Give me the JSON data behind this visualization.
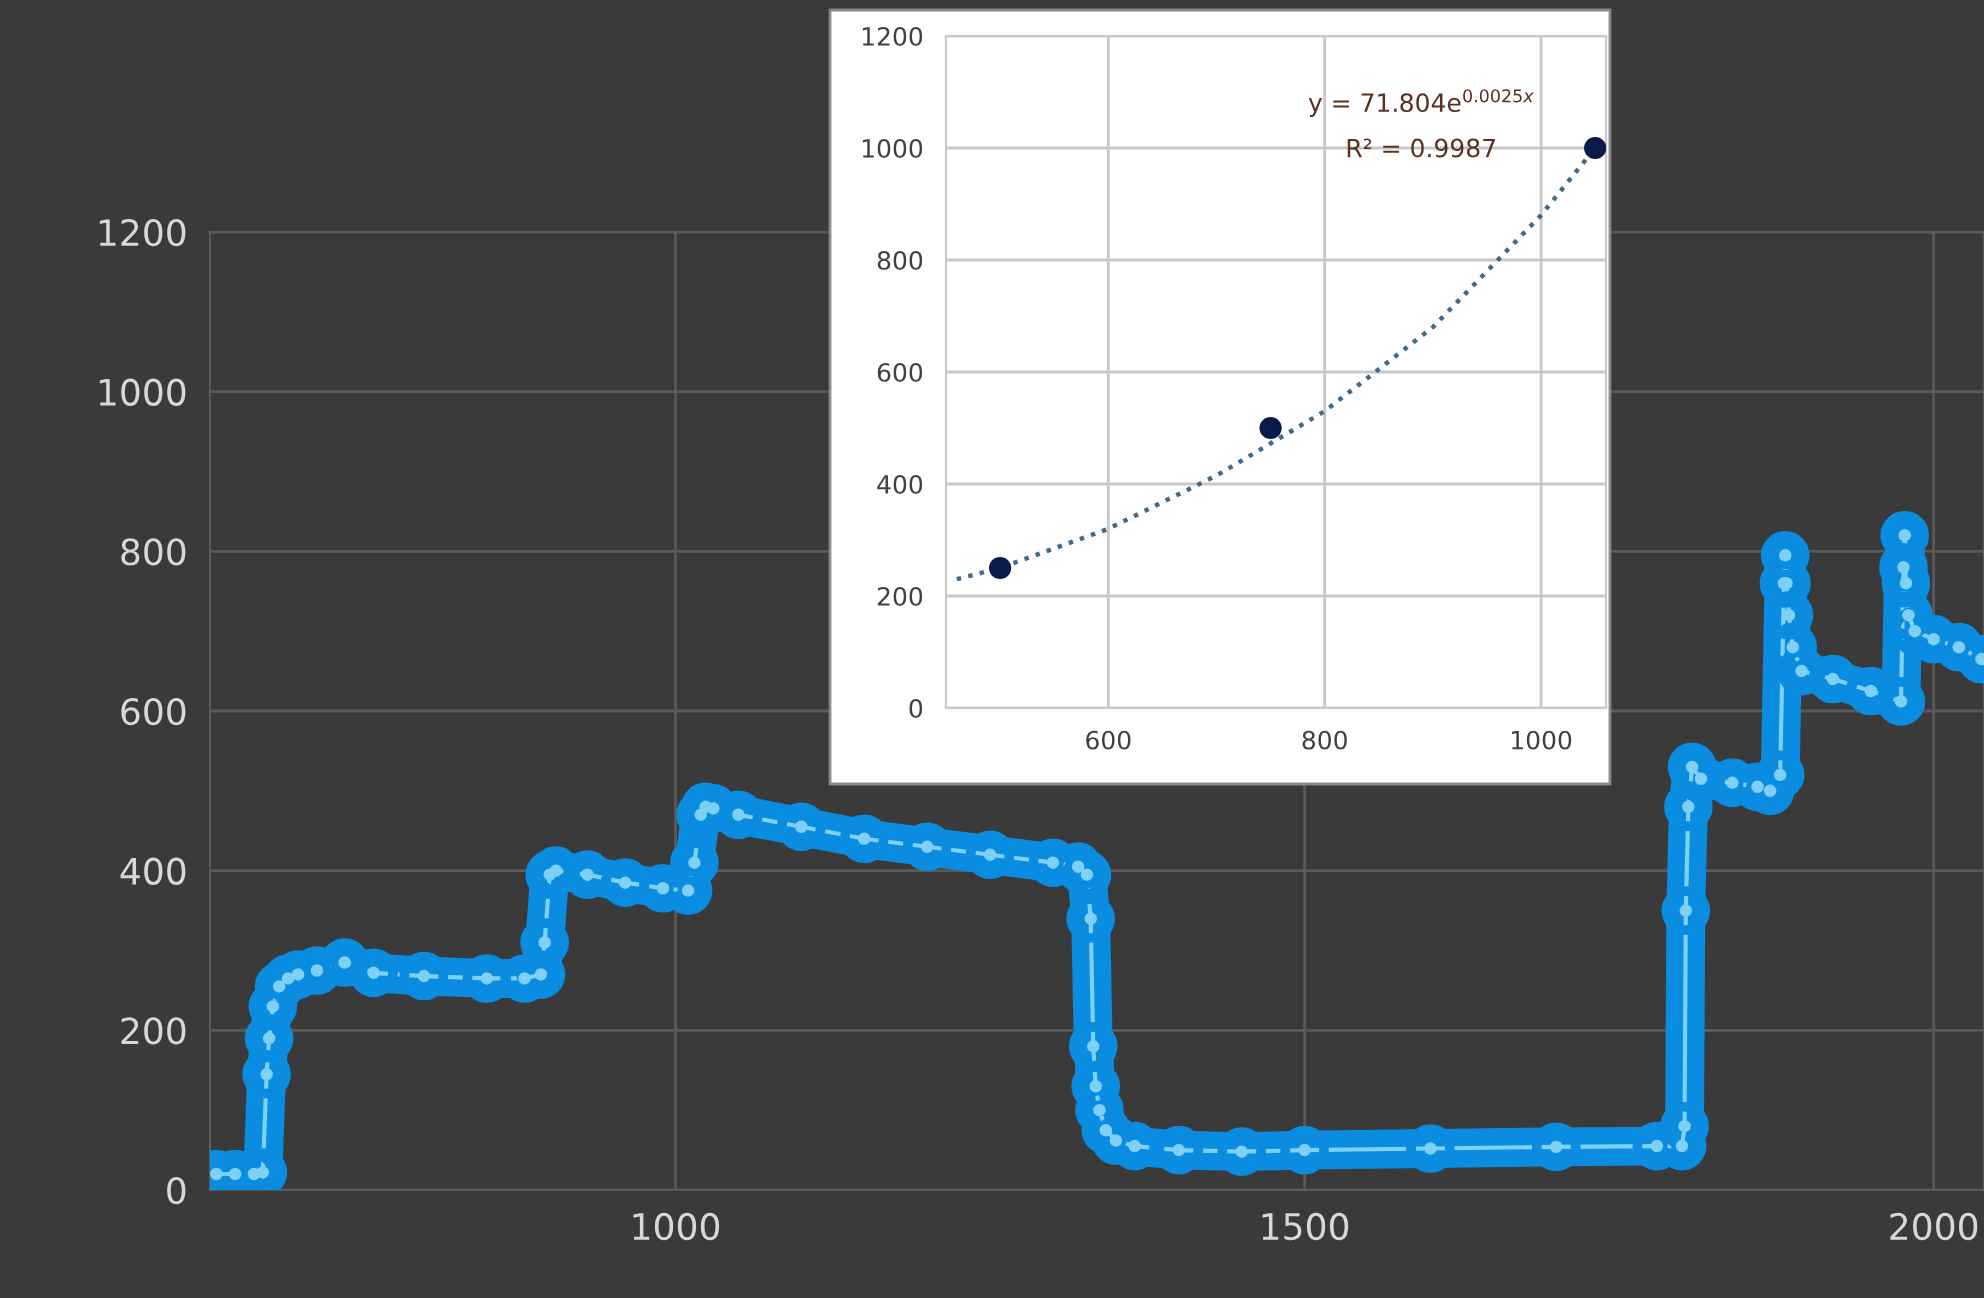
{
  "chart_data": [
    {
      "type": "line",
      "xlim": [
        630,
        2040
      ],
      "ylim": [
        0,
        1200
      ],
      "xticks": [
        1000,
        1500,
        2000
      ],
      "yticks": [
        0,
        200,
        400,
        600,
        800,
        1000,
        1200
      ],
      "grid": true,
      "marker": "circle",
      "line_style": "solid",
      "series": [
        {
          "color": "#7fd0f5",
          "x": [
            635,
            650,
            665,
            672,
            675,
            677,
            680,
            685,
            692,
            700,
            715,
            737,
            760,
            800,
            850,
            880,
            893,
            896,
            900,
            905,
            930,
            960,
            990,
            1010,
            1015,
            1020,
            1024,
            1030,
            1050,
            1100,
            1150,
            1200,
            1250,
            1300,
            1320,
            1327,
            1330,
            1332,
            1334,
            1337,
            1342,
            1350,
            1365,
            1400,
            1450,
            1500,
            1600,
            1700,
            1780,
            1800,
            1802,
            1803,
            1805,
            1808,
            1815,
            1840,
            1860,
            1870,
            1878,
            1881,
            1882,
            1883,
            1885,
            1888,
            1895,
            1920,
            1950,
            1974,
            1976,
            1977,
            1978,
            1980,
            1985,
            2000,
            2020,
            2038
          ],
          "values": [
            20,
            20,
            20,
            22,
            145,
            190,
            230,
            255,
            265,
            270,
            275,
            285,
            272,
            268,
            265,
            265,
            270,
            310,
            395,
            400,
            395,
            385,
            378,
            375,
            410,
            470,
            480,
            478,
            470,
            455,
            440,
            430,
            420,
            410,
            405,
            395,
            340,
            180,
            130,
            100,
            75,
            62,
            55,
            50,
            48,
            50,
            52,
            54,
            55,
            55,
            80,
            350,
            480,
            530,
            515,
            510,
            505,
            500,
            520,
            760,
            795,
            760,
            720,
            680,
            650,
            640,
            625,
            612,
            780,
            820,
            760,
            720,
            700,
            690,
            680,
            665
          ]
        }
      ]
    },
    {
      "type": "scatter",
      "xlim": [
        450,
        1060
      ],
      "ylim": [
        0,
        1200
      ],
      "xticks": [
        600,
        800,
        1000
      ],
      "yticks": [
        0,
        200,
        400,
        600,
        800,
        1000,
        1200
      ],
      "grid": true,
      "marker": "circle",
      "series": [
        {
          "color": "#0a1a4a",
          "x": [
            500,
            750,
            1050
          ],
          "values": [
            250,
            500,
            1000
          ]
        },
        {
          "type": "line",
          "line_style": "dotted",
          "marker": "none",
          "color": "#3f6a8a",
          "x": [
            460,
            500,
            600,
            700,
            800,
            900,
            1000,
            1050
          ],
          "values": [
            230,
            250,
            320,
            415,
            530,
            680,
            880,
            1000
          ]
        }
      ],
      "annotations": [
        "y = 71.804e$^{0.0025x}$",
        "R² = 0.9987"
      ]
    }
  ]
}
